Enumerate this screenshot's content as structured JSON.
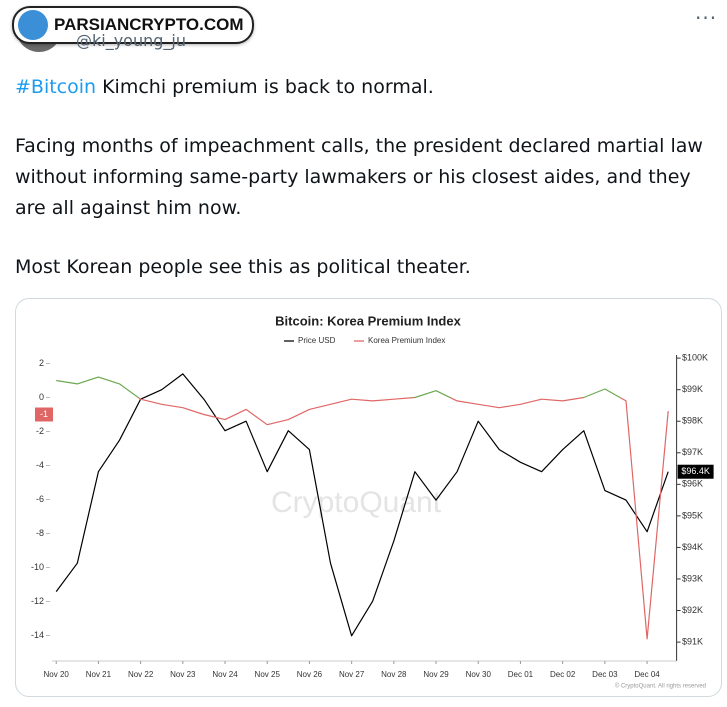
{
  "header": {
    "watermark": "PARSIANCRYPTO.COM",
    "handle": "@ki_young_ju"
  },
  "tweet": {
    "hashtag": "#Bitcoin",
    "paragraphs": [
      "Kimchi premium is back to normal.",
      "Facing months of impeachment calls, the president declared martial law without informing same-party lawmakers or his closest aides, and they are all against him now.",
      "Most Korean people see this as political theater."
    ]
  },
  "chart_data": {
    "type": "line",
    "title": "Bitcoin: Korea Premium Index",
    "watermark": "CryptoQuant",
    "credit": "© CryptoQuant. All rights reserved",
    "x": [
      0,
      0.5,
      1,
      1.5,
      2,
      2.5,
      3,
      3.5,
      4,
      4.5,
      5,
      5.5,
      6,
      6.5,
      7,
      7.5,
      8,
      8.5,
      9,
      9.5,
      10,
      10.5,
      11,
      11.5,
      12,
      12.5,
      13,
      13.5,
      14,
      14.5
    ],
    "xlim": [
      -0.1,
      14.7
    ],
    "xticks": [
      {
        "value": 0,
        "label": "Nov 20"
      },
      {
        "value": 1,
        "label": "Nov 21"
      },
      {
        "value": 2,
        "label": "Nov 22"
      },
      {
        "value": 3,
        "label": "Nov 23"
      },
      {
        "value": 4,
        "label": "Nov 24"
      },
      {
        "value": 5,
        "label": "Nov 25"
      },
      {
        "value": 6,
        "label": "Nov 26"
      },
      {
        "value": 7,
        "label": "Nov 27"
      },
      {
        "value": 8,
        "label": "Nov 28"
      },
      {
        "value": 9,
        "label": "Nov 29"
      },
      {
        "value": 10,
        "label": "Nov 30"
      },
      {
        "value": 11,
        "label": "Dec 01"
      },
      {
        "value": 12,
        "label": "Dec 02"
      },
      {
        "value": 13,
        "label": "Dec 03"
      },
      {
        "value": 14,
        "label": "Dec 04"
      }
    ],
    "ylim": [
      -15.5,
      2.5
    ],
    "yticks": [
      2,
      0,
      -2,
      -4,
      -6,
      -8,
      -10,
      -12,
      -14
    ],
    "y2lim": [
      90400,
      100100
    ],
    "y2ticks": [
      {
        "value": 100000,
        "label": "$100K"
      },
      {
        "value": 99000,
        "label": "$99K"
      },
      {
        "value": 98000,
        "label": "$98K"
      },
      {
        "value": 97000,
        "label": "$97K"
      },
      {
        "value": 96000,
        "label": "$96K"
      },
      {
        "value": 95000,
        "label": "$95K"
      },
      {
        "value": 94000,
        "label": "$94K"
      },
      {
        "value": 93000,
        "label": "$93K"
      },
      {
        "value": 92000,
        "label": "$92K"
      },
      {
        "value": 91000,
        "label": "$91K"
      }
    ],
    "series": [
      {
        "name": "Price USD",
        "color": "#000000",
        "axis": "y2",
        "values": [
          92600,
          93500,
          96400,
          97400,
          98700,
          99000,
          99500,
          98700,
          97700,
          98000,
          96400,
          97700,
          97100,
          93500,
          91200,
          92300,
          94200,
          96400,
          95500,
          96400,
          98000,
          97100,
          96700,
          96400,
          97100,
          97700,
          95800,
          95500,
          94500,
          96400
        ]
      },
      {
        "name": "Korea Premium Index",
        "color": "#e06666",
        "positive_color": "#6aa84f",
        "values": [
          1.0,
          0.8,
          1.2,
          0.8,
          -0.1,
          -0.4,
          -0.6,
          -1.0,
          -1.3,
          -0.7,
          -1.6,
          -1.3,
          -0.7,
          -0.4,
          -0.1,
          -0.2,
          -0.1,
          0,
          0.4,
          -0.2,
          -0.4,
          -0.6,
          -0.4,
          -0.1,
          -0.2,
          0,
          0.5,
          -0.2,
          -14.2,
          -0.8
        ]
      }
    ],
    "annotations": [
      {
        "value": -1,
        "label": "-1",
        "axis": "y",
        "color": "#e06666"
      },
      {
        "value": 96400,
        "label": "$96.4K",
        "axis": "y2",
        "color": "#000000"
      }
    ]
  }
}
